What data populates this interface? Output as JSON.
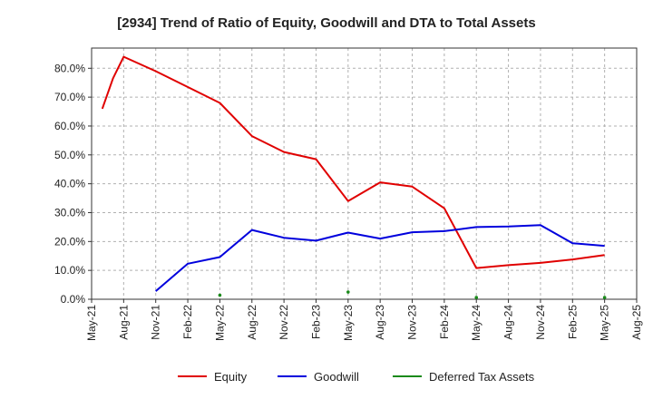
{
  "chart_data": {
    "type": "line",
    "title": "[2934]  Trend of Ratio of Equity, Goodwill and DTA to Total Assets",
    "xlabel": "",
    "ylabel": "",
    "x_ticks": [
      "May-21",
      "Aug-21",
      "Nov-21",
      "Feb-22",
      "May-22",
      "Aug-22",
      "Nov-22",
      "Feb-23",
      "May-23",
      "Aug-23",
      "Nov-23",
      "Feb-24",
      "May-24",
      "Aug-24",
      "Nov-24",
      "Feb-25",
      "May-25",
      "Aug-25"
    ],
    "x_range": [
      "2021-05",
      "2025-08"
    ],
    "ylim": [
      0,
      87
    ],
    "y_ticks": [
      0,
      10,
      20,
      30,
      40,
      50,
      60,
      70,
      80
    ],
    "y_tick_labels": [
      "0.0%",
      "10.0%",
      "20.0%",
      "30.0%",
      "40.0%",
      "50.0%",
      "60.0%",
      "70.0%",
      "80.0%"
    ],
    "grid": true,
    "legend_position": "bottom",
    "series": [
      {
        "name": "Equity",
        "color": "#e00000",
        "style": "line",
        "points": [
          {
            "x": "2021-06",
            "y": 66.0
          },
          {
            "x": "2021-07",
            "y": 76.5
          },
          {
            "x": "2021-08",
            "y": 84.0
          },
          {
            "x": "2021-11",
            "y": 79.0
          },
          {
            "x": "2022-02",
            "y": 73.5
          },
          {
            "x": "2022-05",
            "y": 68.0
          },
          {
            "x": "2022-08",
            "y": 56.5
          },
          {
            "x": "2022-11",
            "y": 51.0
          },
          {
            "x": "2023-02",
            "y": 48.5
          },
          {
            "x": "2023-05",
            "y": 34.0
          },
          {
            "x": "2023-08",
            "y": 40.5
          },
          {
            "x": "2023-11",
            "y": 39.0
          },
          {
            "x": "2024-02",
            "y": 31.5
          },
          {
            "x": "2024-05",
            "y": 10.8
          },
          {
            "x": "2024-08",
            "y": 11.8
          },
          {
            "x": "2024-11",
            "y": 12.6
          },
          {
            "x": "2025-02",
            "y": 13.8
          },
          {
            "x": "2025-05",
            "y": 15.3
          }
        ]
      },
      {
        "name": "Goodwill",
        "color": "#0000dd",
        "style": "line",
        "points": [
          {
            "x": "2021-11",
            "y": 2.8
          },
          {
            "x": "2022-02",
            "y": 12.3
          },
          {
            "x": "2022-05",
            "y": 14.6
          },
          {
            "x": "2022-08",
            "y": 24.0
          },
          {
            "x": "2022-11",
            "y": 21.3
          },
          {
            "x": "2023-02",
            "y": 20.3
          },
          {
            "x": "2023-05",
            "y": 23.1
          },
          {
            "x": "2023-08",
            "y": 21.0
          },
          {
            "x": "2023-11",
            "y": 23.2
          },
          {
            "x": "2024-02",
            "y": 23.6
          },
          {
            "x": "2024-05",
            "y": 25.0
          },
          {
            "x": "2024-08",
            "y": 25.2
          },
          {
            "x": "2024-11",
            "y": 25.7
          },
          {
            "x": "2025-02",
            "y": 19.4
          },
          {
            "x": "2025-05",
            "y": 18.5
          }
        ]
      },
      {
        "name": "Deferred Tax Assets",
        "color": "#1a8a1a",
        "style": "points",
        "points": [
          {
            "x": "2022-05",
            "y": 1.4
          },
          {
            "x": "2023-05",
            "y": 2.5
          },
          {
            "x": "2024-05",
            "y": 0.6
          },
          {
            "x": "2025-05",
            "y": 0.6
          }
        ]
      }
    ]
  }
}
